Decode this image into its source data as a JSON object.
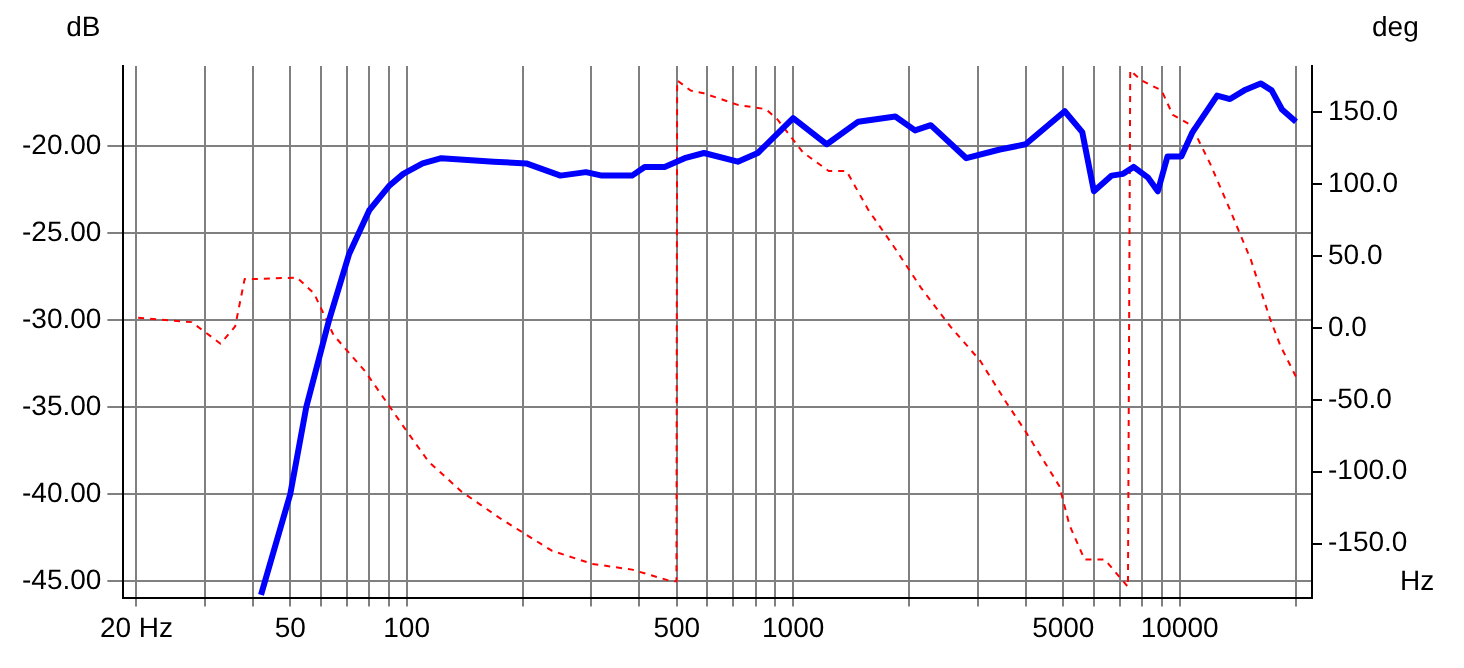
{
  "chart_data": {
    "type": "line",
    "xlabel": "Hz",
    "ylabel": "dB",
    "y2label": "deg",
    "log": "x",
    "grid": true,
    "legend": false,
    "marker": "none",
    "xlim": [
      18.5,
      22000
    ],
    "xticks": [
      {
        "value": 20,
        "label": "20 Hz"
      },
      {
        "value": 30,
        "label": null
      },
      {
        "value": 40,
        "label": null
      },
      50,
      {
        "value": 60,
        "label": null
      },
      {
        "value": 70,
        "label": null
      },
      {
        "value": 80,
        "label": null
      },
      {
        "value": 90,
        "label": null
      },
      100,
      {
        "value": 200,
        "label": null
      },
      {
        "value": 300,
        "label": null
      },
      {
        "value": 400,
        "label": null
      },
      500,
      {
        "value": 600,
        "label": null
      },
      {
        "value": 700,
        "label": null
      },
      {
        "value": 800,
        "label": null
      },
      {
        "value": 900,
        "label": null
      },
      1000,
      {
        "value": 2000,
        "label": null
      },
      {
        "value": 3000,
        "label": null
      },
      {
        "value": 4000,
        "label": null
      },
      5000,
      {
        "value": 6000,
        "label": null
      },
      {
        "value": 7000,
        "label": null
      },
      {
        "value": 8000,
        "label": null
      },
      {
        "value": 9000,
        "label": null
      },
      10000,
      {
        "value": 20000,
        "label": null
      }
    ],
    "ylim": [
      -46,
      -15.4
    ],
    "yticks": [
      {
        "value": -45,
        "label": "-45.00"
      },
      {
        "value": -40,
        "label": "-40.00"
      },
      {
        "value": -35,
        "label": "-35.00"
      },
      {
        "value": -30,
        "label": "-30.00"
      },
      {
        "value": -25,
        "label": "-25.00"
      },
      {
        "value": -20,
        "label": "-20.00"
      }
    ],
    "y2lim": [
      -188,
      182
    ],
    "y2ticks": [
      {
        "value": -150,
        "label": "-150.0"
      },
      {
        "value": -100,
        "label": "-100.0"
      },
      {
        "value": -50,
        "label": "-50.0"
      },
      {
        "value": 0,
        "label": "0.0"
      },
      {
        "value": 50,
        "label": "50.0"
      },
      {
        "value": 100,
        "label": "100.0"
      },
      {
        "value": 150,
        "label": "150.0"
      }
    ],
    "series": [
      {
        "color": "#0000ff",
        "line_style": "solid",
        "x": [
          42,
          50,
          55,
          63,
          71,
          80,
          90,
          98,
          110,
          123,
          168,
          204,
          250,
          291,
          320,
          383,
          413,
          465,
          524,
          588,
          719,
          810,
          1000,
          1222,
          1474,
          1838,
          2067,
          2270,
          2806,
          3425,
          3994,
          5043,
          5598,
          6000,
          6670,
          7140,
          7600,
          8270,
          8780,
          9300,
          10100,
          10800,
          12500,
          13500,
          14700,
          16200,
          17300,
          18400,
          20000
        ],
        "values": [
          -45.8,
          -40,
          -35,
          -30,
          -26.2,
          -23.7,
          -22.3,
          -21.6,
          -21,
          -20.7,
          -20.9,
          -21,
          -21.7,
          -21.5,
          -21.7,
          -21.7,
          -21.2,
          -21.2,
          -20.7,
          -20.4,
          -20.9,
          -20.4,
          -18.4,
          -19.9,
          -18.6,
          -18.3,
          -19.1,
          -18.8,
          -20.7,
          -20.2,
          -19.9,
          -18,
          -19.2,
          -22.6,
          -21.7,
          -21.6,
          -21.2,
          -21.8,
          -22.6,
          -20.6,
          -20.6,
          -19.2,
          -17.1,
          -17.3,
          -16.8,
          -16.4,
          -16.8,
          -17.9,
          -18.6
        ]
      },
      {
        "color": "#ff0000",
        "line_style": "dashed",
        "axis": "y2",
        "x": [
          20.2,
          27.8,
          33,
          36,
          38.1,
          42,
          52,
          57.6,
          64.7,
          78,
          90,
          99,
          114,
          139,
          176,
          238,
          302,
          383,
          483,
          499,
          501,
          543,
          588,
          719,
          850,
          910,
          1060,
          1236,
          1375,
          1565,
          1838,
          2140,
          2550,
          3050,
          3563,
          3994,
          4886,
          5186,
          5677,
          6400,
          7350,
          7450,
          7960,
          8980,
          9600,
          10700,
          12000,
          13500,
          15300,
          17100,
          18200,
          20000
        ],
        "values": [
          7,
          4,
          -11,
          1,
          34,
          34,
          35,
          24,
          -5,
          -30,
          -54,
          -70,
          -93,
          -114,
          -133,
          -155,
          -164,
          -168,
          -176,
          -176,
          172,
          165,
          163,
          155,
          152,
          145,
          122,
          109,
          109,
          82,
          55,
          28,
          1,
          -23,
          -52,
          -72,
          -110,
          -137,
          -161,
          -161,
          -180,
          179,
          172,
          165,
          148,
          141,
          114,
          82,
          47,
          7,
          -12,
          -34
        ]
      }
    ]
  }
}
